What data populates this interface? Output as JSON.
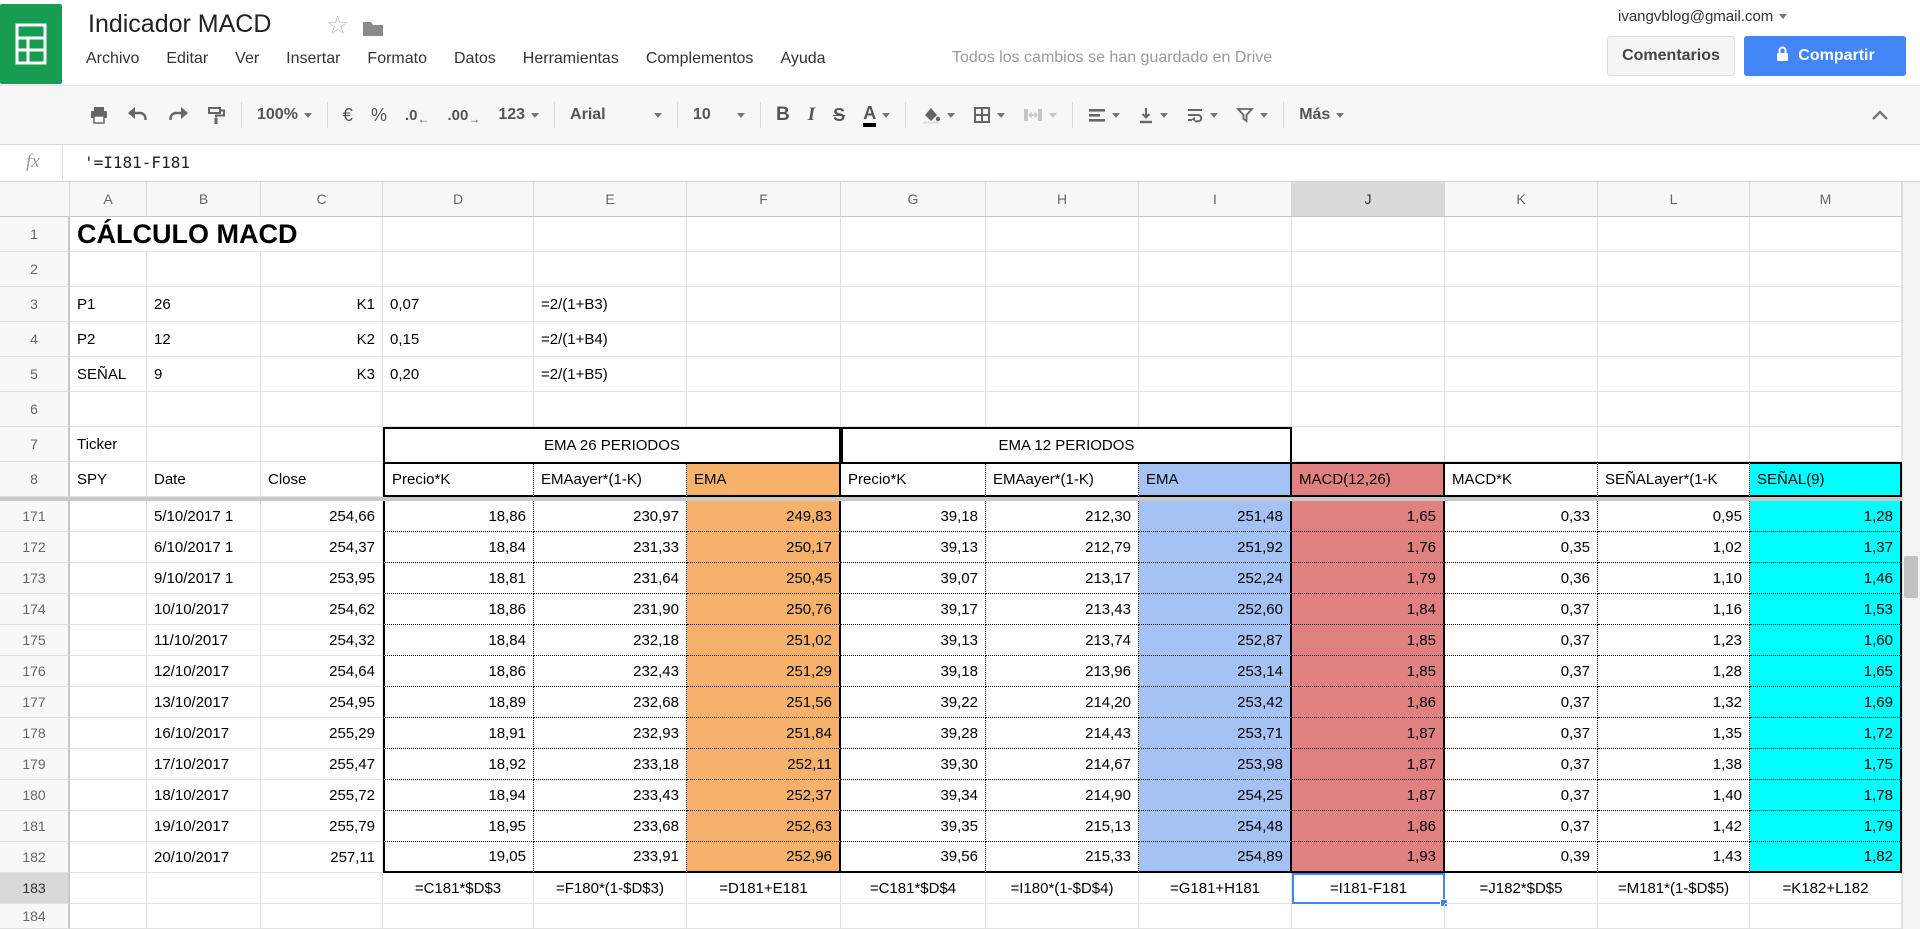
{
  "app": {
    "title": "Indicador MACD",
    "menu": [
      "Archivo",
      "Editar",
      "Ver",
      "Insertar",
      "Formato",
      "Datos",
      "Herramientas",
      "Complementos",
      "Ayuda"
    ],
    "status": "Todos los cambios se han guardado en Drive",
    "account_email": "ivangvblog@gmail.com",
    "comments_button": "Comentarios",
    "share_button": "Compartir"
  },
  "toolbar": {
    "zoom": "100%",
    "currency": "€",
    "percent": "%",
    "decrease_decimals": ".0",
    "increase_decimals": ".00",
    "number_format": "123",
    "font_family": "Arial",
    "font_size": "10",
    "bold": "B",
    "italic": "I",
    "strikethrough": "S",
    "text_color": "A",
    "more": "Más"
  },
  "formula_bar": {
    "fx": "fx",
    "value": "'=I181-F181"
  },
  "colors": {
    "table_orange": "#F6B26B",
    "table_blue": "#A4C2F4",
    "table_red": "#E08080",
    "table_cyan": "#00FFFF",
    "selection_blue": "#4285F4",
    "share_button_bg": "#4285F4",
    "logo_green": "#179c52"
  },
  "sheet": {
    "column_letters": [
      "A",
      "B",
      "C",
      "D",
      "E",
      "F",
      "G",
      "H",
      "I",
      "J",
      "K",
      "L",
      "M"
    ],
    "selected": {
      "col": "J",
      "row": "183"
    },
    "top_row_numbers": [
      "1",
      "2",
      "3",
      "4",
      "5",
      "6",
      "7",
      "8"
    ],
    "title": "CÁLCULO MACD",
    "params": [
      {
        "label": "P1",
        "value": "26",
        "k": "K1",
        "kv": "0,07",
        "formula": "=2/(1+B3)"
      },
      {
        "label": "P2",
        "value": "12",
        "k": "K2",
        "kv": "0,15",
        "formula": "=2/(1+B4)"
      },
      {
        "label": "SEÑAL",
        "value": "9",
        "k": "K3",
        "kv": "0,20",
        "formula": "=2/(1+B5)"
      }
    ],
    "ticker_label": "Ticker",
    "ticker_value": "SPY",
    "group_headers": [
      {
        "label": "EMA 26 PERIODOS",
        "from": "D",
        "to": "F"
      },
      {
        "label": "EMA 12 PERIODOS",
        "from": "G",
        "to": "I"
      }
    ],
    "table_headers": {
      "B": "Date",
      "C": "Close",
      "D": "Precio*K",
      "E": "EMAayer*(1-K)",
      "F": "EMA",
      "G": "Precio*K",
      "H": "EMAayer*(1-K)",
      "I": "EMA",
      "J": "MACD(12,26)",
      "K": "MACD*K",
      "L": "SEÑALayer*(1-K",
      "M": "SEÑAL(9)"
    },
    "data_rows": [
      {
        "n": "171",
        "B": "5/10/2017 1",
        "C": "254,66",
        "D": "18,86",
        "E": "230,97",
        "F": "249,83",
        "G": "39,18",
        "H": "212,30",
        "I": "251,48",
        "J": "1,65",
        "K": "0,33",
        "L": "0,95",
        "M": "1,28"
      },
      {
        "n": "172",
        "B": "6/10/2017 1",
        "C": "254,37",
        "D": "18,84",
        "E": "231,33",
        "F": "250,17",
        "G": "39,13",
        "H": "212,79",
        "I": "251,92",
        "J": "1,76",
        "K": "0,35",
        "L": "1,02",
        "M": "1,37"
      },
      {
        "n": "173",
        "B": "9/10/2017 1",
        "C": "253,95",
        "D": "18,81",
        "E": "231,64",
        "F": "250,45",
        "G": "39,07",
        "H": "213,17",
        "I": "252,24",
        "J": "1,79",
        "K": "0,36",
        "L": "1,10",
        "M": "1,46"
      },
      {
        "n": "174",
        "B": "10/10/2017",
        "C": "254,62",
        "D": "18,86",
        "E": "231,90",
        "F": "250,76",
        "G": "39,17",
        "H": "213,43",
        "I": "252,60",
        "J": "1,84",
        "K": "0,37",
        "L": "1,16",
        "M": "1,53"
      },
      {
        "n": "175",
        "B": "11/10/2017",
        "C": "254,32",
        "D": "18,84",
        "E": "232,18",
        "F": "251,02",
        "G": "39,13",
        "H": "213,74",
        "I": "252,87",
        "J": "1,85",
        "K": "0,37",
        "L": "1,23",
        "M": "1,60"
      },
      {
        "n": "176",
        "B": "12/10/2017",
        "C": "254,64",
        "D": "18,86",
        "E": "232,43",
        "F": "251,29",
        "G": "39,18",
        "H": "213,96",
        "I": "253,14",
        "J": "1,85",
        "K": "0,37",
        "L": "1,28",
        "M": "1,65"
      },
      {
        "n": "177",
        "B": "13/10/2017",
        "C": "254,95",
        "D": "18,89",
        "E": "232,68",
        "F": "251,56",
        "G": "39,22",
        "H": "214,20",
        "I": "253,42",
        "J": "1,86",
        "K": "0,37",
        "L": "1,32",
        "M": "1,69"
      },
      {
        "n": "178",
        "B": "16/10/2017",
        "C": "255,29",
        "D": "18,91",
        "E": "232,93",
        "F": "251,84",
        "G": "39,28",
        "H": "214,43",
        "I": "253,71",
        "J": "1,87",
        "K": "0,37",
        "L": "1,35",
        "M": "1,72"
      },
      {
        "n": "179",
        "B": "17/10/2017",
        "C": "255,47",
        "D": "18,92",
        "E": "233,18",
        "F": "252,11",
        "G": "39,30",
        "H": "214,67",
        "I": "253,98",
        "J": "1,87",
        "K": "0,37",
        "L": "1,38",
        "M": "1,75"
      },
      {
        "n": "180",
        "B": "18/10/2017",
        "C": "255,72",
        "D": "18,94",
        "E": "233,43",
        "F": "252,37",
        "G": "39,34",
        "H": "214,90",
        "I": "254,25",
        "J": "1,87",
        "K": "0,37",
        "L": "1,40",
        "M": "1,78"
      },
      {
        "n": "181",
        "B": "19/10/2017",
        "C": "255,79",
        "D": "18,95",
        "E": "233,68",
        "F": "252,63",
        "G": "39,35",
        "H": "215,13",
        "I": "254,48",
        "J": "1,86",
        "K": "0,37",
        "L": "1,42",
        "M": "1,79"
      },
      {
        "n": "182",
        "B": "20/10/2017",
        "C": "257,11",
        "D": "19,05",
        "E": "233,91",
        "F": "252,96",
        "G": "39,56",
        "H": "215,33",
        "I": "254,89",
        "J": "1,93",
        "K": "0,39",
        "L": "1,43",
        "M": "1,82"
      }
    ],
    "formula_row": {
      "n": "183",
      "D": "=C181*$D$3",
      "E": "=F180*(1-$D$3)",
      "F": "=D181+E181",
      "G": "=C181*$D$4",
      "H": "=I180*(1-$D$4)",
      "I": "=G181+H181",
      "J": "=I181-F181",
      "K": "=J182*$D$5",
      "L": "=M181*(1-$D$5)",
      "M": "=K182+L182"
    },
    "next_row_number": "184"
  }
}
